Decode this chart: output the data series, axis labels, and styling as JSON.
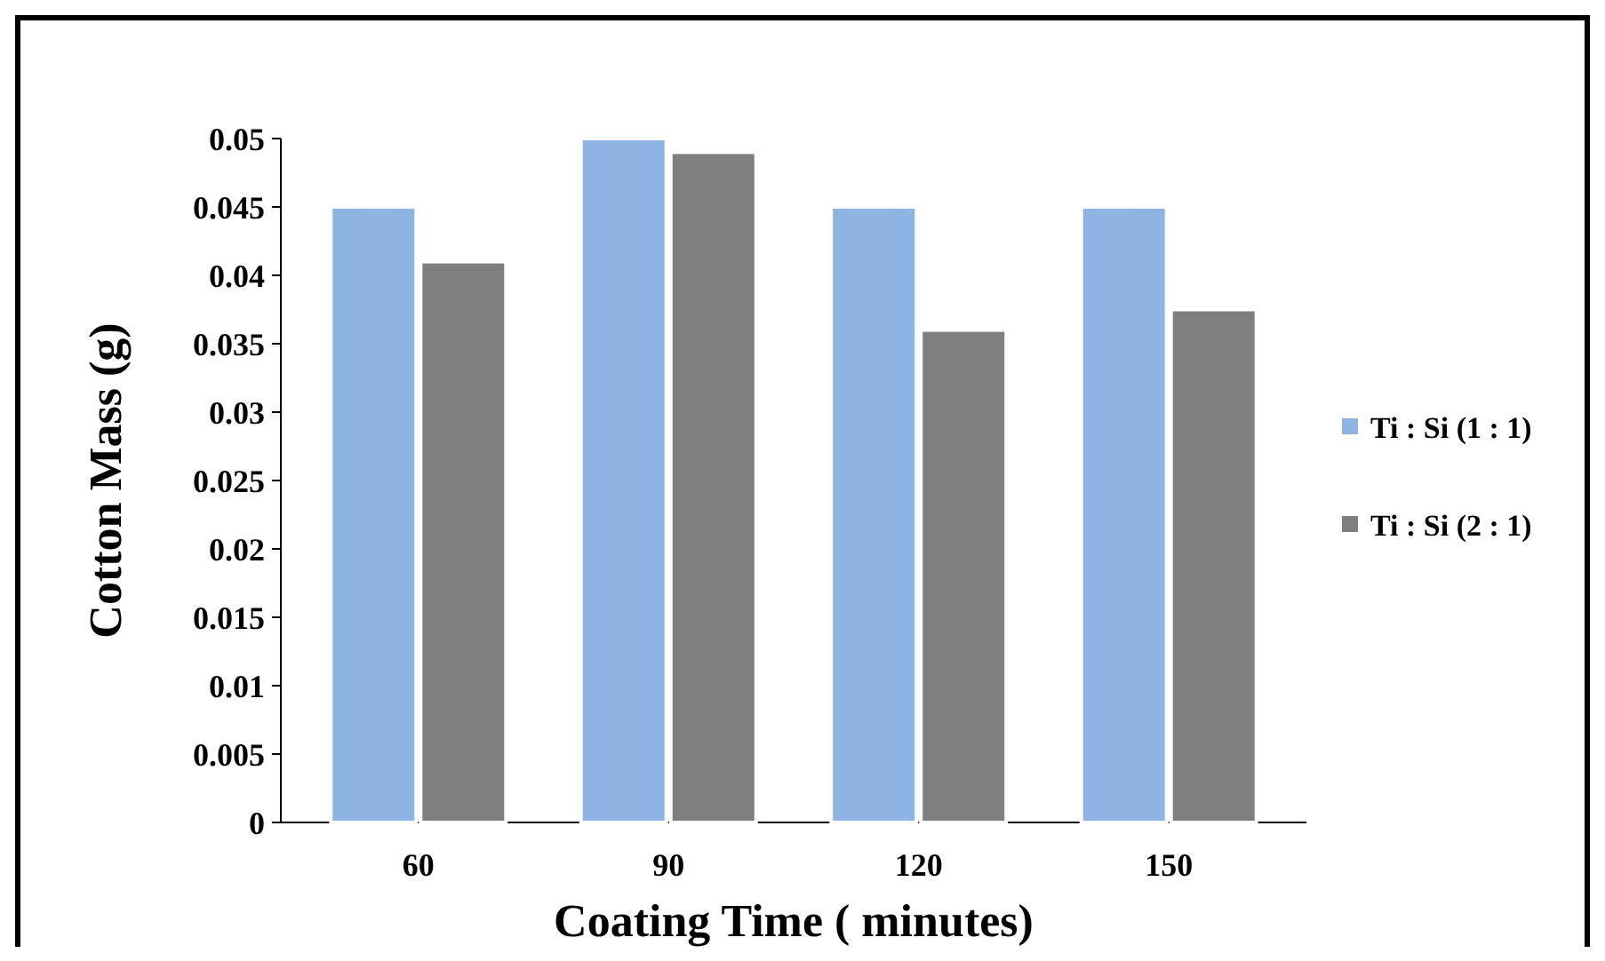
{
  "chart_data": {
    "type": "bar",
    "xlabel": "Coating Time ( minutes)",
    "ylabel": "Cotton Mass (g)",
    "categories": [
      "60",
      "90",
      "120",
      "150"
    ],
    "series": [
      {
        "name": "Ti : Si (1 : 1)",
        "color": "#8db4e2",
        "values": [
          0.045,
          0.05,
          0.045,
          0.045
        ]
      },
      {
        "name": "Ti : Si (2 : 1)",
        "color": "#7f7f7f",
        "values": [
          0.041,
          0.049,
          0.036,
          0.0375
        ]
      }
    ],
    "ylim": [
      0,
      0.05
    ],
    "yticks": [
      0,
      0.005,
      0.01,
      0.015,
      0.02,
      0.025,
      0.03,
      0.035,
      0.04,
      0.045,
      0.05
    ],
    "grid": false,
    "legend": "right"
  }
}
